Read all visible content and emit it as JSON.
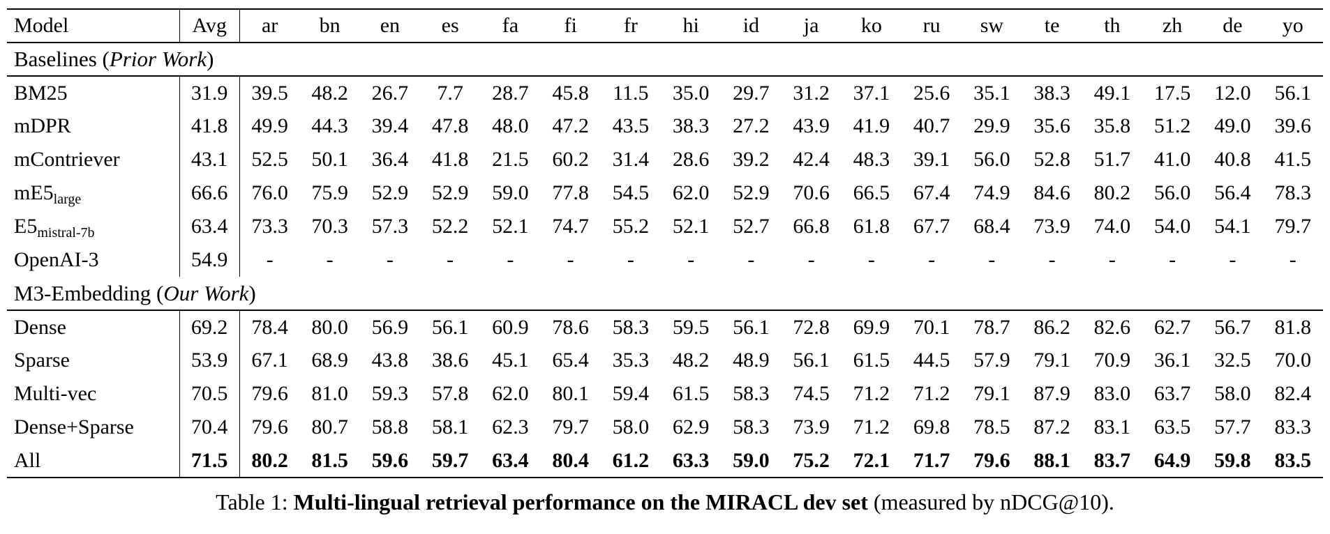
{
  "table": {
    "header": {
      "model": "Model",
      "avg": "Avg",
      "languages": [
        "ar",
        "bn",
        "en",
        "es",
        "fa",
        "fi",
        "fr",
        "hi",
        "id",
        "ja",
        "ko",
        "ru",
        "sw",
        "te",
        "th",
        "zh",
        "de",
        "yo"
      ]
    },
    "sections": [
      {
        "title": {
          "prefix": "Baselines (",
          "italic": "Prior Work",
          "suffix": ")"
        },
        "rows": [
          {
            "model": "BM25",
            "sub": "",
            "bold": false,
            "avg": "31.9",
            "values": [
              "39.5",
              "48.2",
              "26.7",
              "7.7",
              "28.7",
              "45.8",
              "11.5",
              "35.0",
              "29.7",
              "31.2",
              "37.1",
              "25.6",
              "35.1",
              "38.3",
              "49.1",
              "17.5",
              "12.0",
              "56.1"
            ]
          },
          {
            "model": "mDPR",
            "sub": "",
            "bold": false,
            "avg": "41.8",
            "values": [
              "49.9",
              "44.3",
              "39.4",
              "47.8",
              "48.0",
              "47.2",
              "43.5",
              "38.3",
              "27.2",
              "43.9",
              "41.9",
              "40.7",
              "29.9",
              "35.6",
              "35.8",
              "51.2",
              "49.0",
              "39.6"
            ]
          },
          {
            "model": "mContriever",
            "sub": "",
            "bold": false,
            "avg": "43.1",
            "values": [
              "52.5",
              "50.1",
              "36.4",
              "41.8",
              "21.5",
              "60.2",
              "31.4",
              "28.6",
              "39.2",
              "42.4",
              "48.3",
              "39.1",
              "56.0",
              "52.8",
              "51.7",
              "41.0",
              "40.8",
              "41.5"
            ]
          },
          {
            "model": "mE5",
            "sub": "large",
            "bold": false,
            "avg": "66.6",
            "values": [
              "76.0",
              "75.9",
              "52.9",
              "52.9",
              "59.0",
              "77.8",
              "54.5",
              "62.0",
              "52.9",
              "70.6",
              "66.5",
              "67.4",
              "74.9",
              "84.6",
              "80.2",
              "56.0",
              "56.4",
              "78.3"
            ]
          },
          {
            "model": "E5",
            "sub": "mistral-7b",
            "bold": false,
            "avg": "63.4",
            "values": [
              "73.3",
              "70.3",
              "57.3",
              "52.2",
              "52.1",
              "74.7",
              "55.2",
              "52.1",
              "52.7",
              "66.8",
              "61.8",
              "67.7",
              "68.4",
              "73.9",
              "74.0",
              "54.0",
              "54.1",
              "79.7"
            ]
          },
          {
            "model": "OpenAI-3",
            "sub": "",
            "bold": false,
            "avg": "54.9",
            "values": [
              "-",
              "-",
              "-",
              "-",
              "-",
              "-",
              "-",
              "-",
              "-",
              "-",
              "-",
              "-",
              "-",
              "-",
              "-",
              "-",
              "-",
              "-"
            ]
          }
        ]
      },
      {
        "title": {
          "prefix": "M3-Embedding (",
          "italic": "Our Work",
          "suffix": ")"
        },
        "rows": [
          {
            "model": "Dense",
            "sub": "",
            "bold": false,
            "avg": "69.2",
            "values": [
              "78.4",
              "80.0",
              "56.9",
              "56.1",
              "60.9",
              "78.6",
              "58.3",
              "59.5",
              "56.1",
              "72.8",
              "69.9",
              "70.1",
              "78.7",
              "86.2",
              "82.6",
              "62.7",
              "56.7",
              "81.8"
            ]
          },
          {
            "model": "Sparse",
            "sub": "",
            "bold": false,
            "avg": "53.9",
            "values": [
              "67.1",
              "68.9",
              "43.8",
              "38.6",
              "45.1",
              "65.4",
              "35.3",
              "48.2",
              "48.9",
              "56.1",
              "61.5",
              "44.5",
              "57.9",
              "79.1",
              "70.9",
              "36.1",
              "32.5",
              "70.0"
            ]
          },
          {
            "model": "Multi-vec",
            "sub": "",
            "bold": false,
            "avg": "70.5",
            "values": [
              "79.6",
              "81.0",
              "59.3",
              "57.8",
              "62.0",
              "80.1",
              "59.4",
              "61.5",
              "58.3",
              "74.5",
              "71.2",
              "71.2",
              "79.1",
              "87.9",
              "83.0",
              "63.7",
              "58.0",
              "82.4"
            ]
          },
          {
            "model": "Dense+Sparse",
            "sub": "",
            "bold": false,
            "avg": "70.4",
            "values": [
              "79.6",
              "80.7",
              "58.8",
              "58.1",
              "62.3",
              "79.7",
              "58.0",
              "62.9",
              "58.3",
              "73.9",
              "71.2",
              "69.8",
              "78.5",
              "87.2",
              "83.1",
              "63.5",
              "57.7",
              "83.3"
            ]
          },
          {
            "model": "All",
            "sub": "",
            "bold": true,
            "avg": "71.5",
            "values": [
              "80.2",
              "81.5",
              "59.6",
              "59.7",
              "63.4",
              "80.4",
              "61.2",
              "63.3",
              "59.0",
              "75.2",
              "72.1",
              "71.7",
              "79.6",
              "88.1",
              "83.7",
              "64.9",
              "59.8",
              "83.5"
            ]
          }
        ]
      }
    ]
  },
  "caption": {
    "prefix": "Table 1: ",
    "bold": "Multi-lingual retrieval performance on the MIRACL dev set",
    "suffix": " (measured by nDCG@10)."
  }
}
